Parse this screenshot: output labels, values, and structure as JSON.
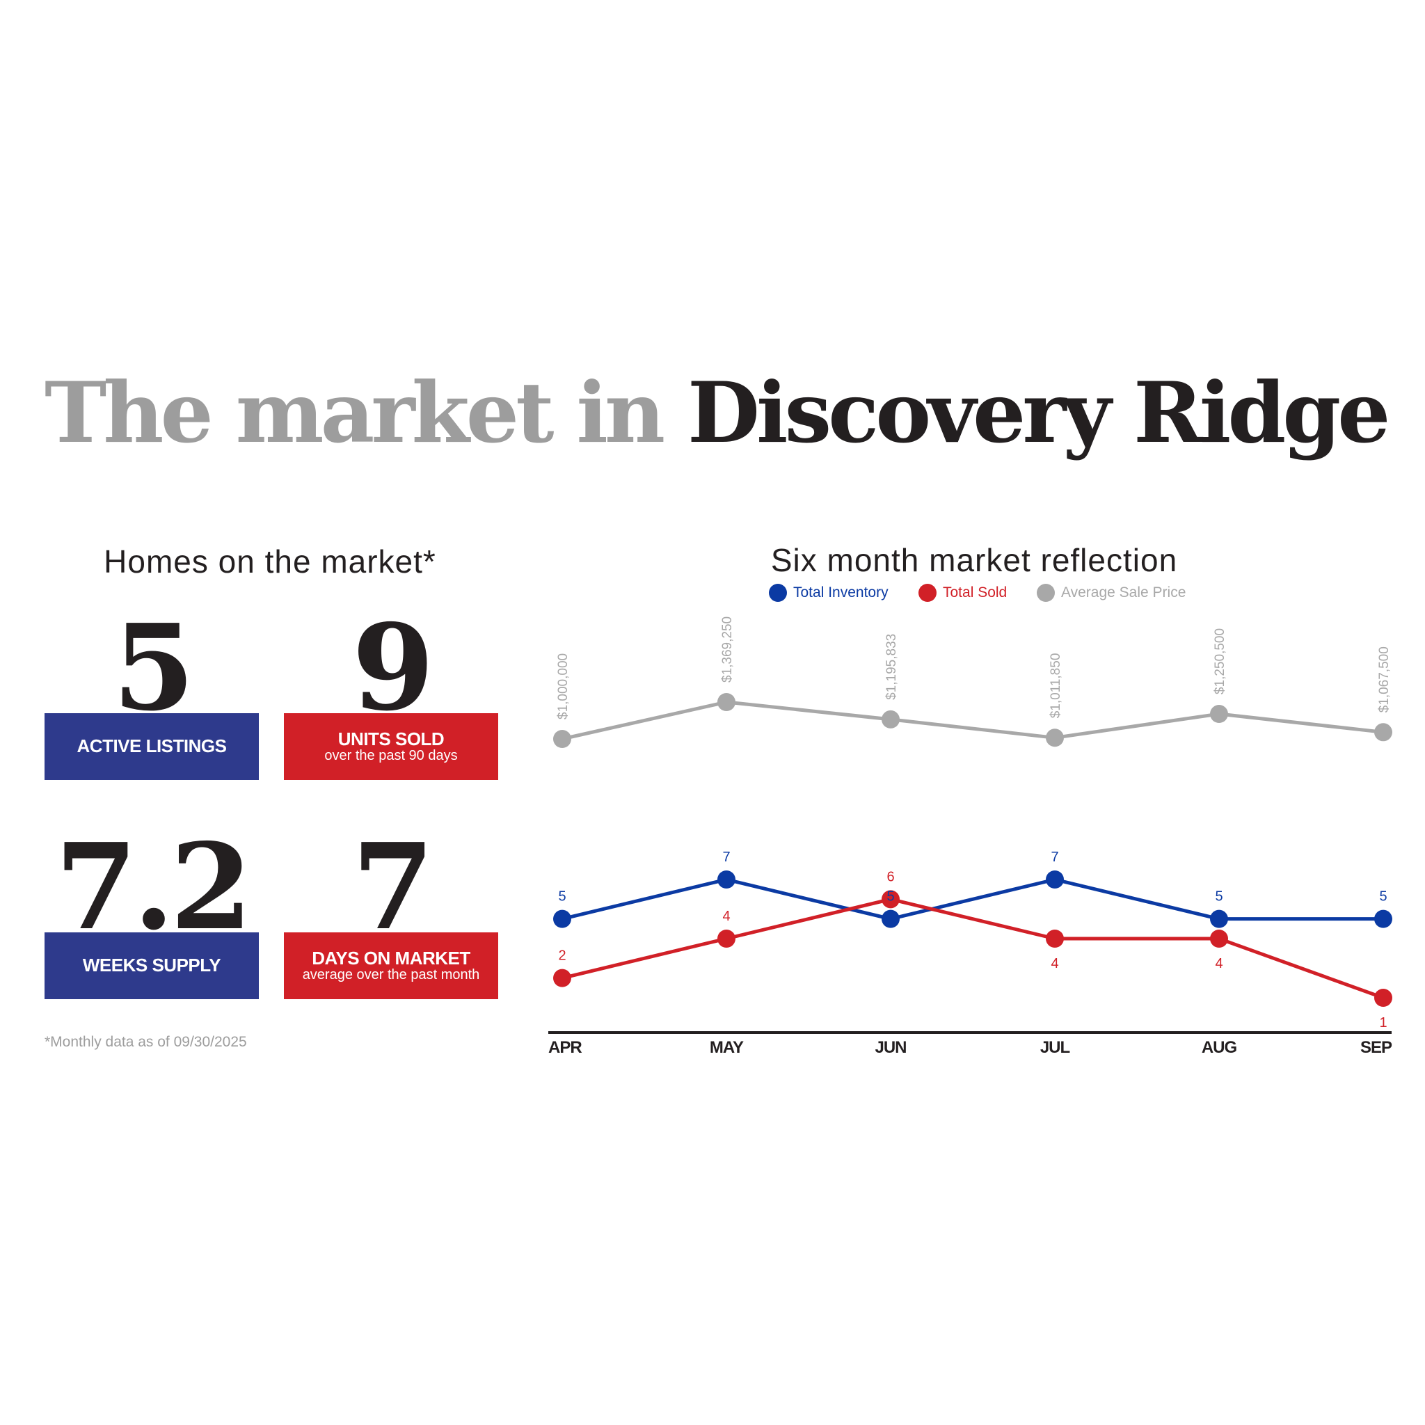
{
  "title": {
    "grey": "The market in",
    "dark": "Discovery Ridge"
  },
  "stats_section": {
    "heading": "Homes on the market*",
    "stats": [
      {
        "value": "5",
        "label": "ACTIVE LISTINGS",
        "sublabel": ""
      },
      {
        "value": "9",
        "label": "UNITS SOLD",
        "sublabel": "over the past 90 days"
      },
      {
        "value": "7.2",
        "label": "WEEKS SUPPLY",
        "sublabel": ""
      },
      {
        "value": "7",
        "label": "DAYS ON MARKET",
        "sublabel": "average over the past month"
      }
    ],
    "footnote": "*Monthly data as of 09/30/2025"
  },
  "colors": {
    "inventory": "#0b3aa3",
    "sold": "#d12027",
    "price": "#a8a8a8",
    "box_blue": "#2e3a8c",
    "box_red": "#d12027",
    "title_dark": "#231f20",
    "title_grey": "#9d9d9d"
  },
  "chart_data": {
    "type": "line",
    "title": "Six month market reflection",
    "categories": [
      "APR",
      "MAY",
      "JUN",
      "JUL",
      "AUG",
      "SEP"
    ],
    "legend": [
      "Total Inventory",
      "Total Sold",
      "Average Sale Price"
    ],
    "legend_position": "top",
    "grid": false,
    "series": [
      {
        "name": "Total Inventory",
        "values": [
          5,
          7,
          5,
          7,
          5,
          5
        ],
        "labels": [
          "5",
          "7",
          "5",
          "7",
          "5",
          "5"
        ]
      },
      {
        "name": "Total Sold",
        "values": [
          2,
          4,
          6,
          4,
          4,
          1
        ],
        "labels": [
          "2",
          "4",
          "6",
          "4",
          "4",
          "1"
        ]
      },
      {
        "name": "Average Sale Price",
        "values": [
          1000000,
          1369250,
          1195833,
          1011850,
          1250500,
          1067500
        ],
        "labels": [
          "$1,000,000",
          "$1,369,250",
          "$1,195,833",
          "$1,011,850",
          "$1,250,500",
          "$1,067,500"
        ]
      }
    ],
    "count_axis_range": [
      0,
      8
    ],
    "price_axis_range": [
      1000000,
      1369250
    ]
  }
}
